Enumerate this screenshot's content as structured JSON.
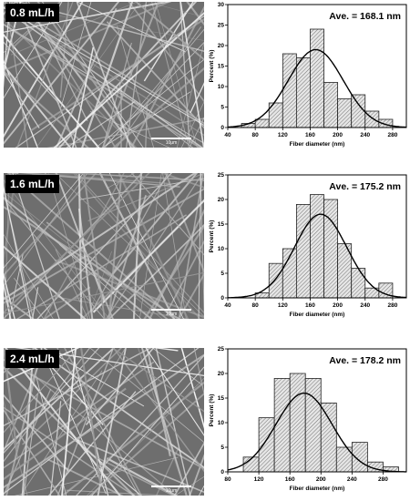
{
  "panels": [
    {
      "sem_label": "0.8 mL/h",
      "scale_label": "10μm",
      "chart_data": {
        "type": "bar",
        "title": "Ave. = 168.1 nm",
        "xlabel": "Fiber diameter (nm)",
        "ylabel": "Percent (%)",
        "xlim": [
          40,
          300
        ],
        "ylim": [
          0,
          30
        ],
        "xticks": [
          40,
          80,
          120,
          160,
          200,
          240,
          280
        ],
        "yticks": [
          0,
          5,
          10,
          15,
          20,
          25,
          30
        ],
        "bin_width": 20,
        "bin_starts": [
          60,
          80,
          100,
          120,
          140,
          160,
          180,
          200,
          220,
          240,
          260
        ],
        "values": [
          1,
          2,
          6,
          18,
          17,
          24,
          11,
          7,
          8,
          4,
          2
        ],
        "fit": {
          "type": "gaussian",
          "mean": 168.1,
          "peak": 19,
          "sigma": 40
        }
      }
    },
    {
      "sem_label": "1.6 mL/h",
      "scale_label": "10μm",
      "chart_data": {
        "type": "bar",
        "title": "Ave. = 175.2 nm",
        "xlabel": "Fiber diameter (nm)",
        "ylabel": "Percent (%)",
        "xlim": [
          40,
          300
        ],
        "ylim": [
          0,
          25
        ],
        "xticks": [
          40,
          80,
          120,
          160,
          200,
          240,
          280
        ],
        "yticks": [
          0,
          5,
          10,
          15,
          20,
          25
        ],
        "bin_width": 20,
        "bin_starts": [
          80,
          100,
          120,
          140,
          160,
          180,
          200,
          220,
          240,
          260
        ],
        "values": [
          1,
          7,
          10,
          19,
          21,
          20,
          11,
          6,
          2,
          3
        ],
        "fit": {
          "type": "gaussian",
          "mean": 175.2,
          "peak": 17,
          "sigma": 38
        }
      }
    },
    {
      "sem_label": "2.4 mL/h",
      "scale_label": "10μm",
      "chart_data": {
        "type": "bar",
        "title": "Ave. = 178.2 nm",
        "xlabel": "Fiber diameter (nm)",
        "ylabel": "Percent (%)",
        "xlim": [
          80,
          310
        ],
        "ylim": [
          0,
          25
        ],
        "xticks": [
          80,
          120,
          160,
          200,
          240,
          280
        ],
        "yticks": [
          0,
          5,
          10,
          15,
          20,
          25
        ],
        "bin_width": 20,
        "bin_starts": [
          100,
          120,
          140,
          160,
          180,
          200,
          220,
          240,
          260,
          280
        ],
        "values": [
          3,
          11,
          19,
          20,
          19,
          14,
          5,
          6,
          2,
          1
        ],
        "fit": {
          "type": "gaussian",
          "mean": 178.2,
          "peak": 16,
          "sigma": 36
        }
      }
    }
  ]
}
